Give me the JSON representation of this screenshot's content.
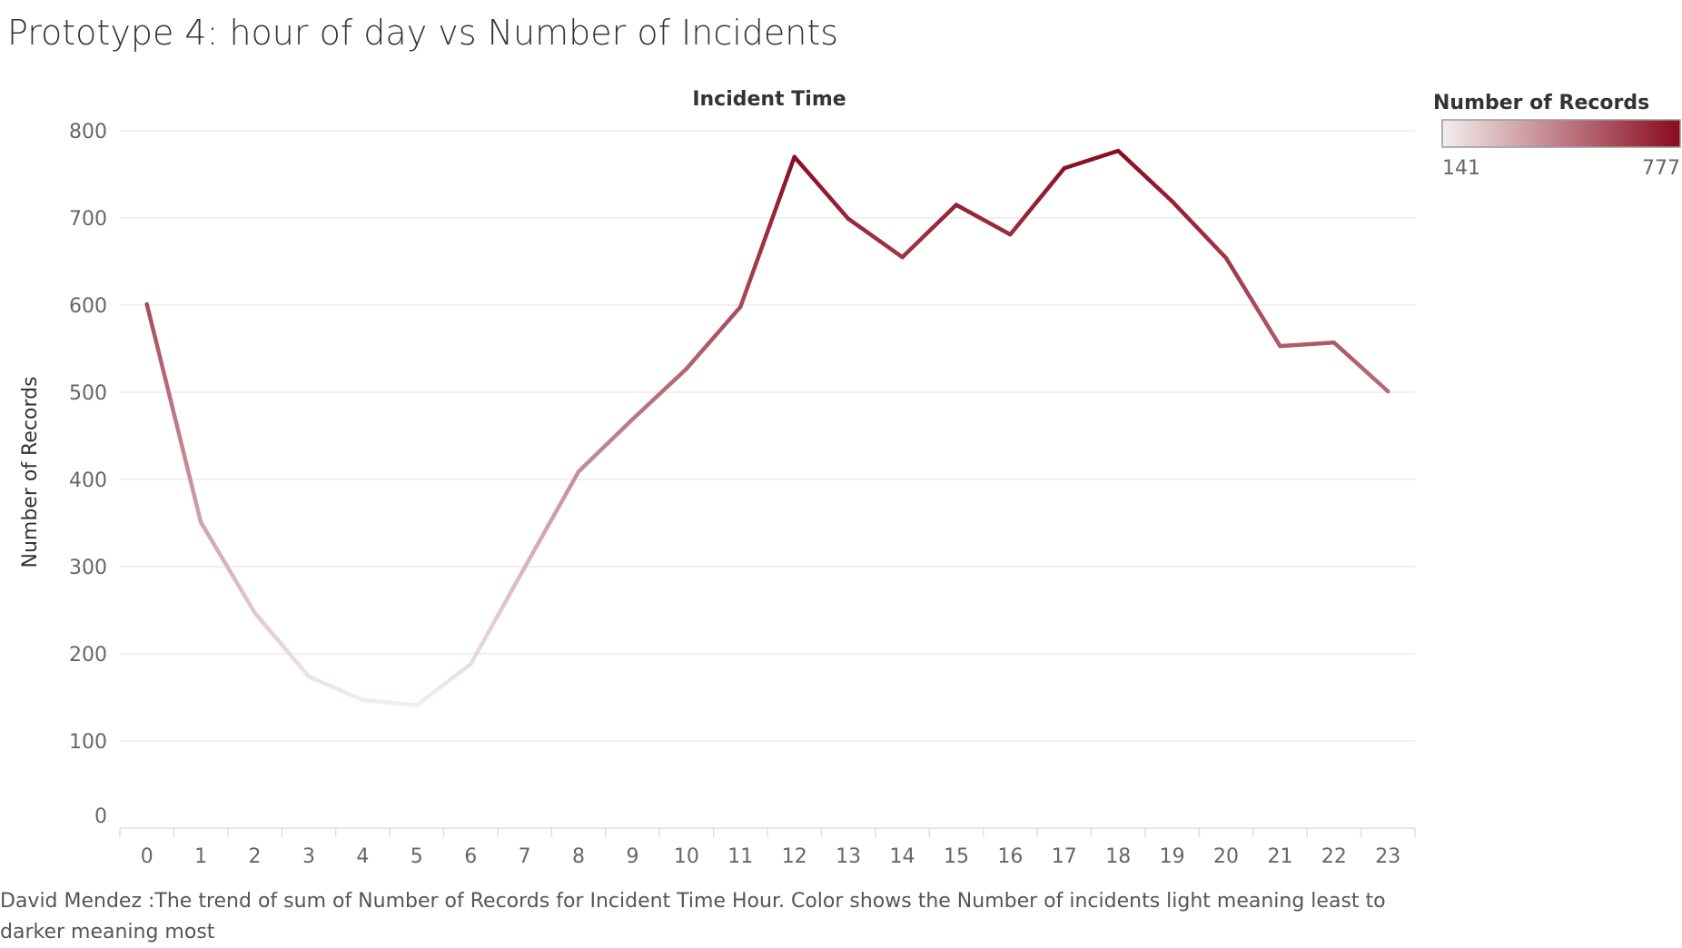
{
  "title": "Prototype 4: hour of day vs Number of Incidents",
  "caption": "David Mendez :The trend of sum of Number of Records for Incident Time Hour.  Color shows the Number of incidents light meaning least to darker meaning most",
  "chart_data": {
    "type": "line",
    "title": "Prototype 4: hour of day vs Number of Incidents",
    "xlabel": "Incident Time",
    "ylabel": "Number of Records",
    "categories": [
      "0",
      "1",
      "2",
      "3",
      "4",
      "5",
      "6",
      "7",
      "8",
      "9",
      "10",
      "11",
      "12",
      "13",
      "14",
      "15",
      "16",
      "17",
      "18",
      "19",
      "20",
      "21",
      "22",
      "23"
    ],
    "series": [
      {
        "values": [
          601,
          351,
          247,
          174,
          147,
          141,
          188,
          299,
          409,
          469,
          527,
          598,
          770,
          699,
          655,
          715,
          681,
          757,
          777,
          719,
          654,
          553,
          557,
          501
        ]
      }
    ],
    "ylim": [
      0,
      800
    ],
    "yticks": [
      0,
      100,
      200,
      300,
      400,
      500,
      600,
      700,
      800
    ],
    "grid": true,
    "legend": {
      "title": "Number of Records",
      "min_label": "141",
      "max_label": "777",
      "min_value": 141,
      "max_value": 777,
      "color_low": "#f2eeee",
      "color_high": "#8a0b1e",
      "placement": "top-right"
    }
  }
}
